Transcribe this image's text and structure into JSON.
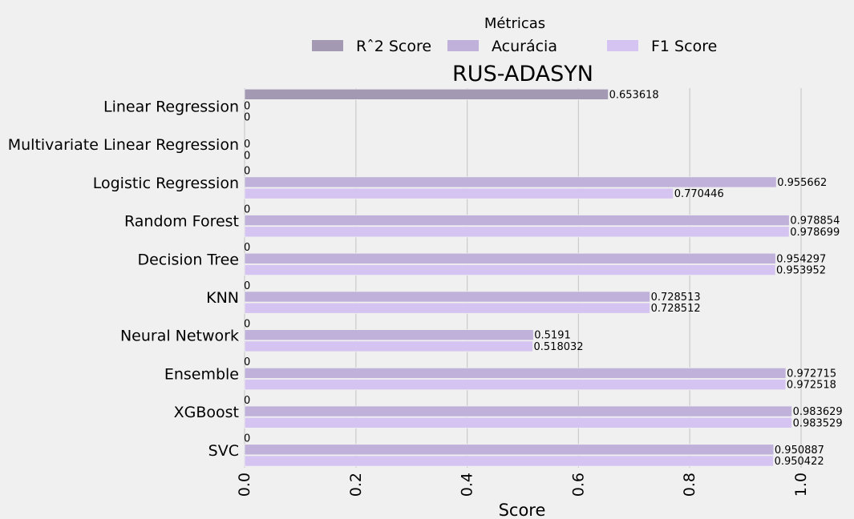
{
  "chart_data": {
    "type": "bar",
    "orientation": "horizontal",
    "title": "RUS-ADASYN",
    "xlabel": "Score",
    "ylabel": "",
    "xlim": [
      0.0,
      1.0
    ],
    "x_ticks": [
      "0.0",
      "0.2",
      "0.4",
      "0.6",
      "0.8",
      "1.0"
    ],
    "grid": "vertical",
    "legend": {
      "title": "Métricas",
      "placement": "top-center"
    },
    "categories": [
      "Linear Regression",
      "Multivariate Linear Regression",
      "Logistic Regression",
      "Random Forest",
      "Decision Tree",
      "KNN",
      "Neural Network",
      "Ensemble",
      "XGBoost",
      "SVC"
    ],
    "series": [
      {
        "name": "Rˆ2 Score",
        "color": "#a499b3",
        "values": [
          0.653618,
          null,
          0,
          0,
          0,
          0,
          0,
          0,
          0,
          0
        ],
        "labels": [
          "0.653618",
          "",
          "0",
          "0",
          "0",
          "0",
          "0",
          "0",
          "0",
          "0"
        ]
      },
      {
        "name": "Acurácia",
        "color": "#bfb1d9",
        "values": [
          0,
          0,
          0.955662,
          0.978854,
          0.954297,
          0.728513,
          0.5191,
          0.972715,
          0.983629,
          0.950887
        ],
        "labels": [
          "0",
          "0",
          "0.955662",
          "0.978854",
          "0.954297",
          "0.728513",
          "0.5191",
          "0.972715",
          "0.983629",
          "0.950887"
        ]
      },
      {
        "name": "F1 Score",
        "color": "#d5c4f1",
        "values": [
          0,
          0,
          0.770446,
          0.978699,
          0.953952,
          0.728512,
          0.518032,
          0.972518,
          0.983529,
          0.950422
        ],
        "labels": [
          "0",
          "0",
          "0.770446",
          "0.978699",
          "0.953952",
          "0.728512",
          "0.518032",
          "0.972518",
          "0.983529",
          "0.950422"
        ]
      }
    ]
  }
}
